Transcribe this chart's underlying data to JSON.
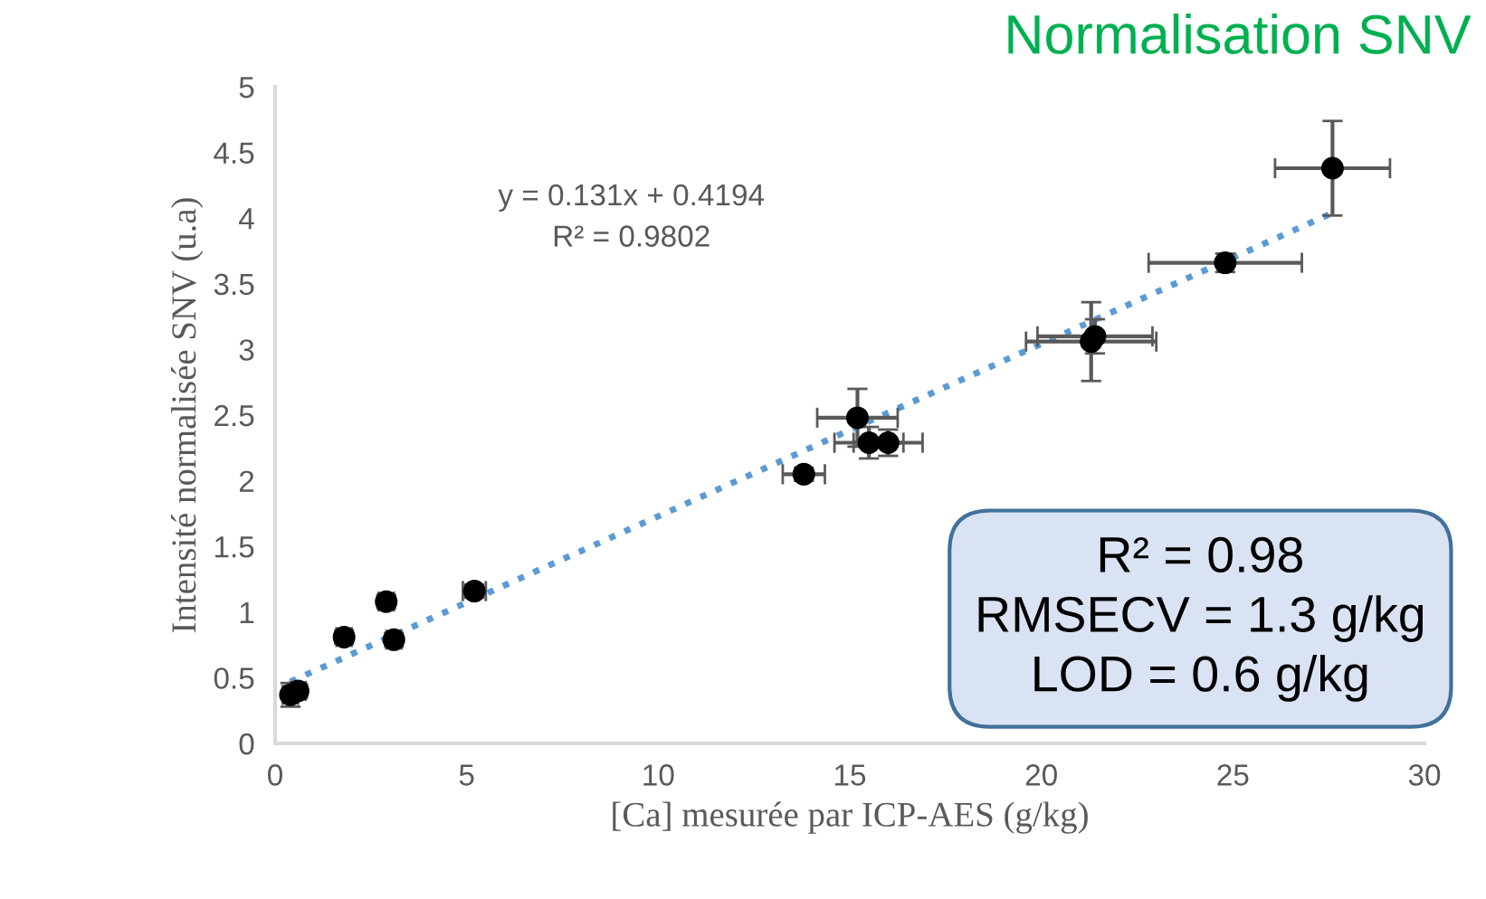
{
  "chart_data": {
    "type": "scatter",
    "title": "Normalisation SNV",
    "xlabel": "[Ca] mesurée par ICP-AES (g/kg)",
    "ylabel": "Intensité normalisée SNV (u.a)",
    "xlim": [
      0,
      30
    ],
    "xticks": [
      0,
      5,
      10,
      15,
      20,
      25,
      30
    ],
    "ylim": [
      0,
      5
    ],
    "yticks": [
      0,
      0.5,
      1,
      1.5,
      2,
      2.5,
      3,
      3.5,
      4,
      4.5,
      5
    ],
    "grid": false,
    "legend": false,
    "series": [
      {
        "color": "#000000",
        "marker": "circle",
        "x": [
          0.4,
          0.6,
          1.8,
          2.9,
          3.1,
          5.2,
          13.8,
          15.2,
          15.5,
          16.0,
          21.3,
          21.4,
          24.8,
          27.6
        ],
        "values": [
          0.37,
          0.4,
          0.81,
          1.08,
          0.79,
          1.16,
          2.05,
          2.48,
          2.29,
          2.29,
          3.06,
          3.1,
          3.66,
          4.38
        ],
        "errors": [
          0.09,
          0.05,
          0.05,
          0.05,
          0.05,
          0.05,
          0.05,
          0.22,
          0.12,
          0.1,
          0.3,
          0.13,
          0.07,
          0.36
        ],
        "xerrors": [
          0.2,
          0.2,
          0.2,
          0.2,
          0.2,
          0.3,
          0.55,
          1.05,
          0.9,
          0.9,
          1.7,
          1.5,
          2.0,
          1.5
        ]
      },
      {
        "type": "line",
        "color": "#5b9bd5",
        "line_style": "dotted",
        "marker": "none",
        "x": [
          0.4,
          27.6
        ],
        "values": [
          0.47,
          4.04
        ]
      }
    ],
    "annotations": [
      "y = 0.131x + 0.4194\nR² = 0.9802",
      "R² = 0.98\nRMSECV = 1.3 g/kg\nLOD = 0.6 g/kg"
    ]
  }
}
